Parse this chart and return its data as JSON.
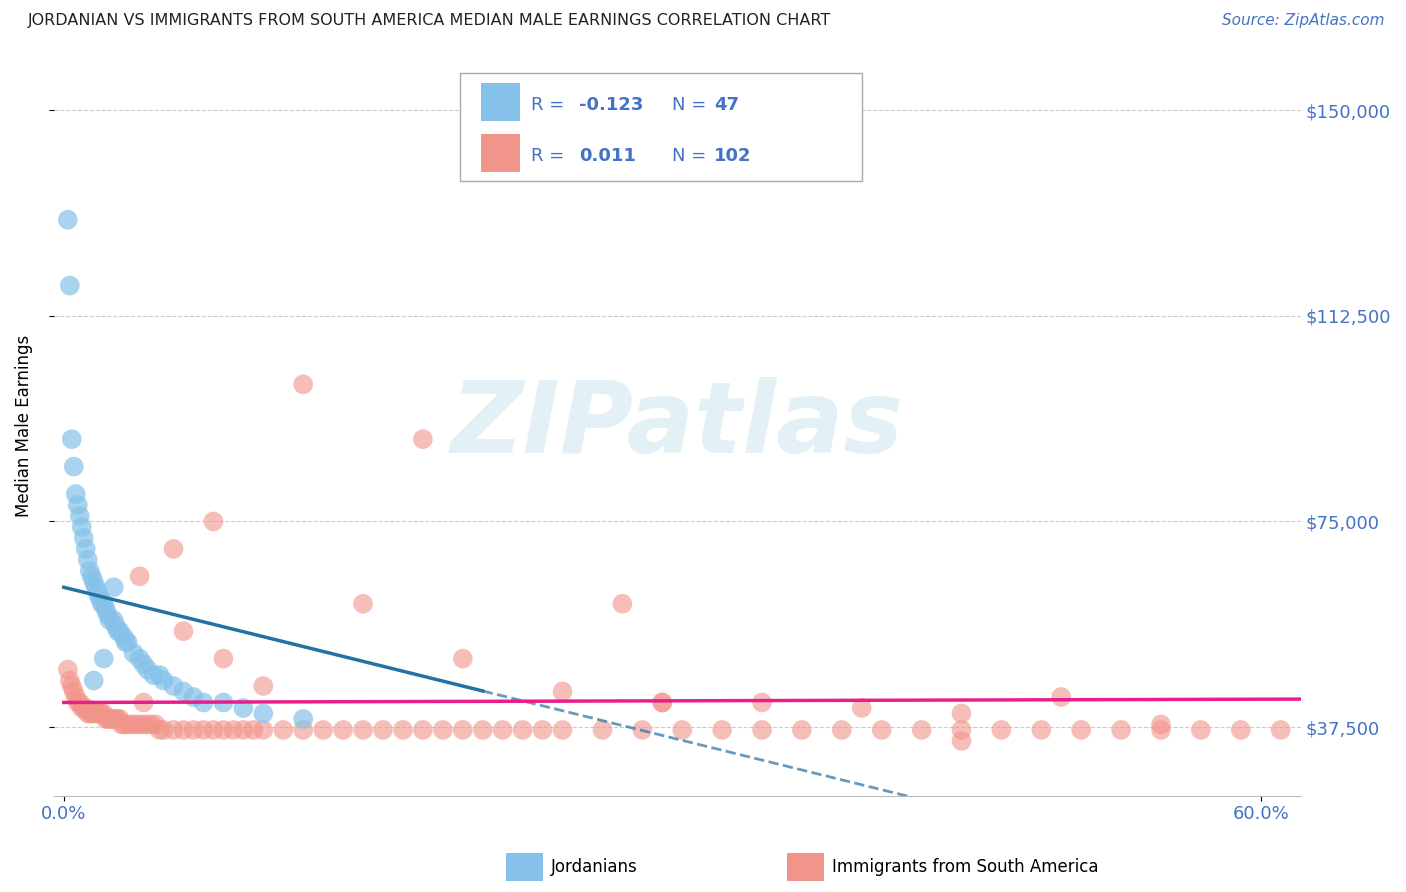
{
  "title": "JORDANIAN VS IMMIGRANTS FROM SOUTH AMERICA MEDIAN MALE EARNINGS CORRELATION CHART",
  "source": "Source: ZipAtlas.com",
  "ylabel": "Median Male Earnings",
  "watermark": "ZIPatlas",
  "ylim": [
    25000,
    160000
  ],
  "xlim": [
    -0.005,
    0.62
  ],
  "yticks": [
    37500,
    75000,
    112500,
    150000
  ],
  "ytick_labels": [
    "$37,500",
    "$75,000",
    "$112,500",
    "$150,000"
  ],
  "xticks": [
    0.0,
    0.6
  ],
  "xtick_labels": [
    "0.0%",
    "60.0%"
  ],
  "blue_color": "#85C1E9",
  "pink_color": "#F1948A",
  "axis_color": "#4472c4",
  "trend_blue": "#2471A3",
  "trend_pink": "#E91E8C",
  "blue_scatter_x": [
    0.002,
    0.003,
    0.004,
    0.005,
    0.006,
    0.007,
    0.008,
    0.009,
    0.01,
    0.011,
    0.012,
    0.013,
    0.014,
    0.015,
    0.016,
    0.017,
    0.018,
    0.019,
    0.02,
    0.021,
    0.022,
    0.023,
    0.025,
    0.026,
    0.027,
    0.028,
    0.03,
    0.031,
    0.032,
    0.035,
    0.038,
    0.04,
    0.042,
    0.045,
    0.048,
    0.05,
    0.055,
    0.06,
    0.065,
    0.07,
    0.08,
    0.09,
    0.1,
    0.12,
    0.015,
    0.02,
    0.025
  ],
  "blue_scatter_y": [
    130000,
    118000,
    90000,
    85000,
    80000,
    78000,
    76000,
    74000,
    72000,
    70000,
    68000,
    66000,
    65000,
    64000,
    63000,
    62000,
    61000,
    60000,
    60000,
    59000,
    58000,
    57000,
    57000,
    56000,
    55000,
    55000,
    54000,
    53000,
    53000,
    51000,
    50000,
    49000,
    48000,
    47000,
    47000,
    46000,
    45000,
    44000,
    43000,
    42000,
    42000,
    41000,
    40000,
    39000,
    46000,
    50000,
    63000
  ],
  "pink_scatter_x": [
    0.002,
    0.003,
    0.004,
    0.005,
    0.006,
    0.007,
    0.008,
    0.009,
    0.01,
    0.011,
    0.012,
    0.013,
    0.014,
    0.015,
    0.016,
    0.017,
    0.018,
    0.019,
    0.02,
    0.021,
    0.022,
    0.023,
    0.024,
    0.025,
    0.026,
    0.027,
    0.028,
    0.029,
    0.03,
    0.032,
    0.034,
    0.036,
    0.038,
    0.04,
    0.042,
    0.044,
    0.046,
    0.048,
    0.05,
    0.055,
    0.06,
    0.065,
    0.07,
    0.075,
    0.08,
    0.085,
    0.09,
    0.095,
    0.1,
    0.11,
    0.12,
    0.13,
    0.14,
    0.15,
    0.16,
    0.17,
    0.18,
    0.19,
    0.2,
    0.21,
    0.22,
    0.23,
    0.24,
    0.25,
    0.27,
    0.29,
    0.31,
    0.33,
    0.35,
    0.37,
    0.39,
    0.41,
    0.43,
    0.45,
    0.47,
    0.49,
    0.51,
    0.53,
    0.55,
    0.57,
    0.59,
    0.61,
    0.04,
    0.06,
    0.08,
    0.1,
    0.15,
    0.2,
    0.25,
    0.3,
    0.35,
    0.4,
    0.45,
    0.5,
    0.55,
    0.038,
    0.055,
    0.075,
    0.3,
    0.45,
    0.12,
    0.18,
    0.28
  ],
  "pink_scatter_y": [
    48000,
    46000,
    45000,
    44000,
    43000,
    42000,
    42000,
    41000,
    41000,
    41000,
    40000,
    40000,
    40000,
    40000,
    40000,
    40000,
    40000,
    40000,
    40000,
    39000,
    39000,
    39000,
    39000,
    39000,
    39000,
    39000,
    39000,
    38000,
    38000,
    38000,
    38000,
    38000,
    38000,
    38000,
    38000,
    38000,
    38000,
    37000,
    37000,
    37000,
    37000,
    37000,
    37000,
    37000,
    37000,
    37000,
    37000,
    37000,
    37000,
    37000,
    37000,
    37000,
    37000,
    37000,
    37000,
    37000,
    37000,
    37000,
    37000,
    37000,
    37000,
    37000,
    37000,
    37000,
    37000,
    37000,
    37000,
    37000,
    37000,
    37000,
    37000,
    37000,
    37000,
    37000,
    37000,
    37000,
    37000,
    37000,
    37000,
    37000,
    37000,
    37000,
    42000,
    55000,
    50000,
    45000,
    60000,
    50000,
    44000,
    42000,
    42000,
    41000,
    40000,
    43000,
    38000,
    65000,
    70000,
    75000,
    42000,
    35000,
    100000,
    90000,
    60000
  ]
}
